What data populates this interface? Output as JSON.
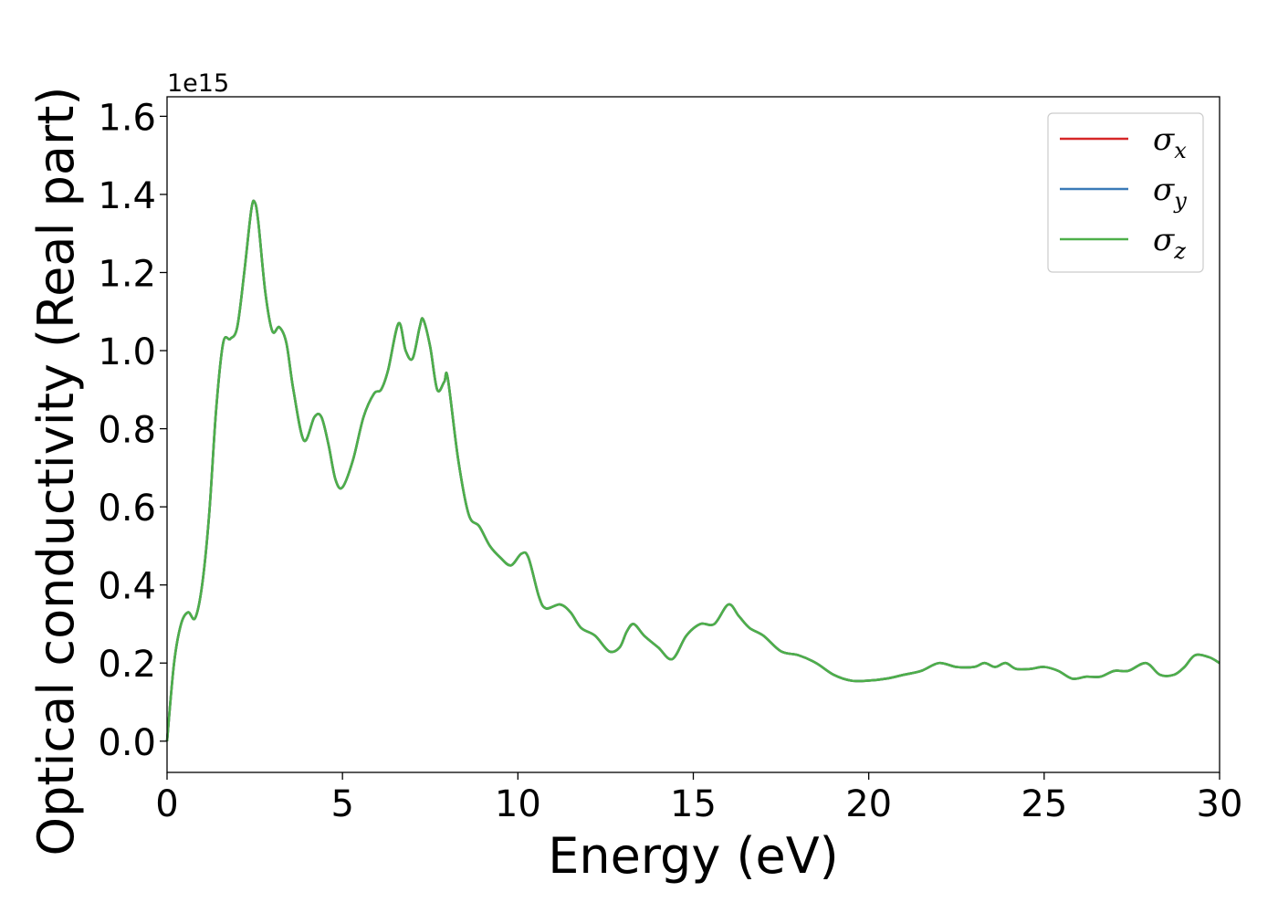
{
  "chart_data": {
    "type": "line",
    "xlabel": "Energy (eV)",
    "ylabel": "Optical conductivity (Real part)",
    "y_offset_label": "1e15",
    "xlim": [
      0,
      30
    ],
    "ylim": [
      -0.08,
      1.65
    ],
    "x_ticks": [
      0,
      5,
      10,
      15,
      20,
      25,
      30
    ],
    "x_tick_labels": [
      "0",
      "5",
      "10",
      "15",
      "20",
      "25",
      "30"
    ],
    "y_ticks": [
      0.0,
      0.2,
      0.4,
      0.6,
      0.8,
      1.0,
      1.2,
      1.4,
      1.6
    ],
    "y_tick_labels": [
      "0.0",
      "0.2",
      "0.4",
      "0.6",
      "0.8",
      "1.0",
      "1.2",
      "1.4",
      "1.6"
    ],
    "grid": false,
    "legend_position": "top-right",
    "series": [
      {
        "name": "σx",
        "symbol": "σ",
        "subscript": "x",
        "color": "#d62728"
      },
      {
        "name": "σy",
        "symbol": "σ",
        "subscript": "y",
        "color": "#3a7ab7"
      },
      {
        "name": "σz",
        "symbol": "σ",
        "subscript": "z",
        "color": "#4daf4a"
      }
    ],
    "x": [
      0.0,
      0.2,
      0.4,
      0.6,
      0.8,
      1.0,
      1.2,
      1.4,
      1.6,
      1.8,
      2.0,
      2.2,
      2.4,
      2.5,
      2.6,
      2.8,
      3.0,
      3.2,
      3.4,
      3.6,
      3.9,
      4.2,
      4.4,
      4.6,
      4.8,
      5.0,
      5.3,
      5.6,
      5.9,
      6.1,
      6.3,
      6.6,
      6.8,
      7.0,
      7.2,
      7.3,
      7.5,
      7.7,
      7.9,
      8.0,
      8.3,
      8.6,
      8.9,
      9.2,
      9.5,
      9.8,
      10.1,
      10.3,
      10.6,
      10.8,
      11.2,
      11.5,
      11.8,
      12.2,
      12.6,
      12.9,
      13.1,
      13.3,
      13.6,
      14.0,
      14.4,
      14.8,
      15.2,
      15.6,
      16.0,
      16.3,
      16.6,
      17.0,
      17.5,
      18.0,
      18.5,
      19.0,
      19.5,
      20.0,
      20.5,
      21.0,
      21.5,
      22.0,
      22.5,
      23.0,
      23.3,
      23.6,
      23.9,
      24.2,
      24.6,
      25.0,
      25.4,
      25.8,
      26.2,
      26.6,
      27.0,
      27.4,
      27.9,
      28.3,
      28.7,
      29.0,
      29.3,
      29.7,
      30.0
    ],
    "values": {
      "σx": [
        0.0,
        0.2,
        0.3,
        0.33,
        0.315,
        0.4,
        0.58,
        0.85,
        1.02,
        1.03,
        1.06,
        1.2,
        1.36,
        1.38,
        1.33,
        1.15,
        1.05,
        1.06,
        1.02,
        0.9,
        0.77,
        0.83,
        0.83,
        0.76,
        0.67,
        0.65,
        0.72,
        0.83,
        0.89,
        0.9,
        0.95,
        1.07,
        1.0,
        0.98,
        1.06,
        1.08,
        1.01,
        0.9,
        0.92,
        0.93,
        0.72,
        0.58,
        0.55,
        0.5,
        0.47,
        0.45,
        0.48,
        0.47,
        0.37,
        0.34,
        0.35,
        0.33,
        0.29,
        0.27,
        0.23,
        0.24,
        0.28,
        0.3,
        0.27,
        0.24,
        0.21,
        0.27,
        0.3,
        0.3,
        0.35,
        0.32,
        0.29,
        0.27,
        0.23,
        0.22,
        0.2,
        0.17,
        0.155,
        0.155,
        0.16,
        0.17,
        0.18,
        0.2,
        0.19,
        0.19,
        0.2,
        0.19,
        0.2,
        0.185,
        0.185,
        0.19,
        0.18,
        0.16,
        0.165,
        0.165,
        0.18,
        0.18,
        0.2,
        0.17,
        0.17,
        0.19,
        0.22,
        0.215,
        0.2
      ],
      "σy": [
        0.0,
        0.2,
        0.3,
        0.33,
        0.315,
        0.4,
        0.58,
        0.85,
        1.02,
        1.03,
        1.06,
        1.2,
        1.36,
        1.38,
        1.33,
        1.15,
        1.05,
        1.06,
        1.02,
        0.9,
        0.77,
        0.83,
        0.83,
        0.76,
        0.67,
        0.65,
        0.72,
        0.83,
        0.89,
        0.9,
        0.95,
        1.07,
        1.0,
        0.98,
        1.06,
        1.08,
        1.01,
        0.9,
        0.92,
        0.93,
        0.72,
        0.58,
        0.55,
        0.5,
        0.47,
        0.45,
        0.48,
        0.47,
        0.37,
        0.34,
        0.35,
        0.33,
        0.29,
        0.27,
        0.23,
        0.24,
        0.28,
        0.3,
        0.27,
        0.24,
        0.21,
        0.27,
        0.3,
        0.3,
        0.35,
        0.32,
        0.29,
        0.27,
        0.23,
        0.22,
        0.2,
        0.17,
        0.155,
        0.155,
        0.16,
        0.17,
        0.18,
        0.2,
        0.19,
        0.19,
        0.2,
        0.19,
        0.2,
        0.185,
        0.185,
        0.19,
        0.18,
        0.16,
        0.165,
        0.165,
        0.18,
        0.18,
        0.2,
        0.17,
        0.17,
        0.19,
        0.22,
        0.215,
        0.2
      ],
      "σz": [
        0.0,
        0.2,
        0.3,
        0.33,
        0.315,
        0.4,
        0.58,
        0.85,
        1.02,
        1.03,
        1.06,
        1.2,
        1.36,
        1.38,
        1.33,
        1.15,
        1.05,
        1.06,
        1.02,
        0.9,
        0.77,
        0.83,
        0.83,
        0.76,
        0.67,
        0.65,
        0.72,
        0.83,
        0.89,
        0.9,
        0.95,
        1.07,
        1.0,
        0.98,
        1.06,
        1.08,
        1.01,
        0.9,
        0.92,
        0.93,
        0.72,
        0.58,
        0.55,
        0.5,
        0.47,
        0.45,
        0.48,
        0.47,
        0.37,
        0.34,
        0.35,
        0.33,
        0.29,
        0.27,
        0.23,
        0.24,
        0.28,
        0.3,
        0.27,
        0.24,
        0.21,
        0.27,
        0.3,
        0.3,
        0.35,
        0.32,
        0.29,
        0.27,
        0.23,
        0.22,
        0.2,
        0.17,
        0.155,
        0.155,
        0.16,
        0.17,
        0.18,
        0.2,
        0.19,
        0.19,
        0.2,
        0.19,
        0.2,
        0.185,
        0.185,
        0.19,
        0.18,
        0.16,
        0.165,
        0.165,
        0.18,
        0.18,
        0.2,
        0.17,
        0.17,
        0.19,
        0.22,
        0.215,
        0.2
      ]
    }
  }
}
